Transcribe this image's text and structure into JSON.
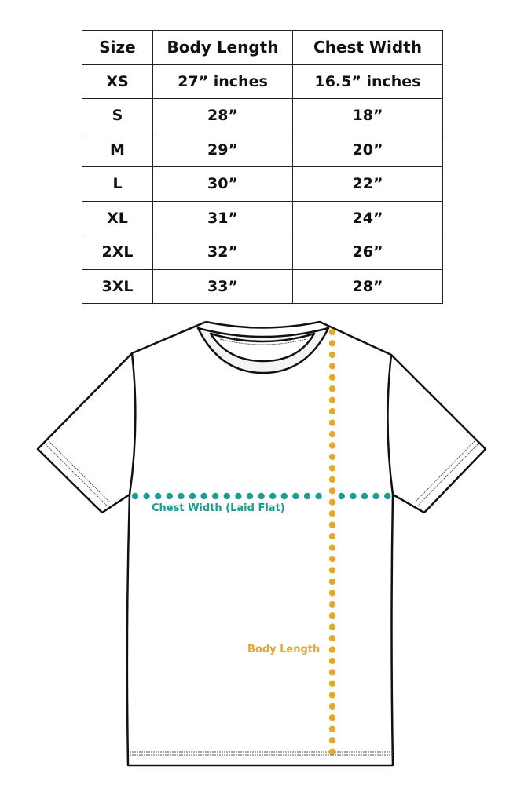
{
  "table": {
    "headers": [
      "Size",
      "Body Length",
      "Chest Width"
    ],
    "rows": [
      [
        "XS",
        "27” inches",
        "16.5” inches"
      ],
      [
        "S",
        "28”",
        "18”"
      ],
      [
        "M",
        "29”",
        "20”"
      ],
      [
        "L",
        "30”",
        "22”"
      ],
      [
        "XL",
        "31”",
        "24”"
      ],
      [
        "2XL",
        "32”",
        "26”"
      ],
      [
        "3XL",
        "33”",
        "28”"
      ]
    ]
  },
  "diagram": {
    "chest_label": "Chest Width (Laid Flat)",
    "length_label": "Body Length",
    "colors": {
      "chest": "#1a9e94",
      "length": "#e0aa2e",
      "outline": "#111111"
    }
  }
}
